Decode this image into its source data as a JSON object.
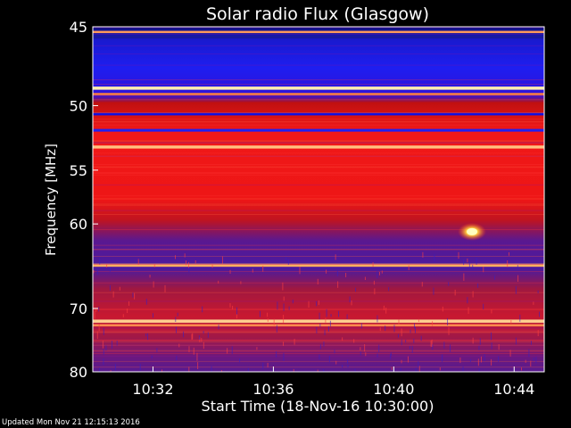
{
  "chart_data": {
    "type": "heatmap",
    "title": "Solar radio Flux (Glasgow)",
    "xlabel": "Start Time (18-Nov-16 10:30:00)",
    "ylabel": "Frequency [MHz]",
    "y_scale": "reciprocal",
    "x_ticks": [
      "10:32",
      "10:36",
      "10:40",
      "10:44"
    ],
    "y_ticks": [
      45,
      50,
      55,
      60,
      70,
      80
    ],
    "y_range_mhz": [
      45,
      80
    ],
    "time_range_minutes": [
      0,
      15
    ],
    "bands": [
      {
        "freq": 45.3,
        "level": "bright",
        "color": "#ff9a5a"
      },
      {
        "freq": 45.6,
        "level": "low",
        "color": "#1a1aa0"
      },
      {
        "freq": 48.8,
        "level": "very-bright",
        "color": "#fff0b0"
      },
      {
        "freq": 49.2,
        "level": "bright",
        "color": "#ff8040"
      },
      {
        "freq": 50.6,
        "level": "low",
        "color": "#1010e0"
      },
      {
        "freq": 51.8,
        "level": "low",
        "color": "#2020f0"
      },
      {
        "freq": 52.7,
        "level": "high",
        "color": "#e02020"
      },
      {
        "freq": 53.1,
        "level": "very-bright",
        "color": "#ffc080"
      },
      {
        "freq": 64.5,
        "level": "very-bright",
        "color": "#ffb060"
      },
      {
        "freq": 71.8,
        "level": "very-bright",
        "color": "#ffd090"
      },
      {
        "freq": 72.4,
        "level": "bright",
        "color": "#ff9050"
      }
    ],
    "burst": {
      "time_minutes": 12.6,
      "freq": 60.8
    }
  },
  "footer": "Updated Mon Nov 21 12:15:13 2016"
}
